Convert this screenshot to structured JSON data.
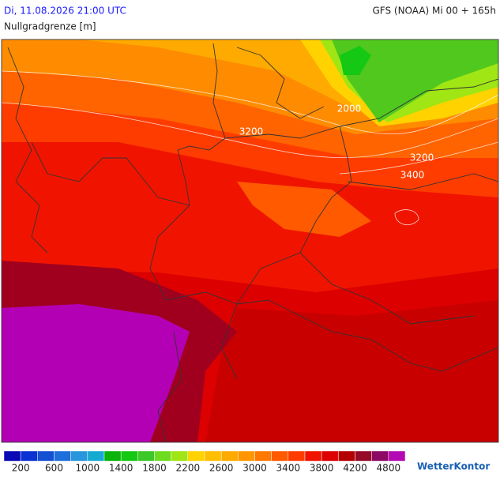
{
  "header": {
    "datetime": "Di, 11.08.2026 21:00 UTC",
    "model": "GFS (NOAA) Mi 00 + 165h",
    "parameter": "Nullgradgrenze [m]"
  },
  "map": {
    "contour_labels": [
      "2000",
      "3200",
      "3200",
      "3400"
    ]
  },
  "legend": {
    "colors": [
      "#0a0ab4",
      "#0a32d2",
      "#1450d2",
      "#1e6edc",
      "#2896dc",
      "#14aad2",
      "#0ab40a",
      "#14c814",
      "#3cc828",
      "#6edc1e",
      "#a0e614",
      "#ffd200",
      "#ffbe00",
      "#ffaa00",
      "#ff9600",
      "#ff7800",
      "#ff5a00",
      "#ff3c00",
      "#f01400",
      "#dc0000",
      "#b40000",
      "#960a28",
      "#8c0a64",
      "#b40ab4"
    ],
    "labels": [
      "200",
      "600",
      "1000",
      "1400",
      "1800",
      "2200",
      "2600",
      "3000",
      "3400",
      "3800",
      "4200",
      "4800"
    ]
  },
  "logo": "WetterKontor"
}
